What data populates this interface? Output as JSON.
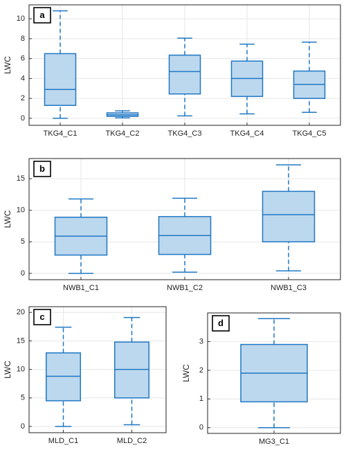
{
  "chart_data": [
    {
      "type": "box",
      "label": "a",
      "y_label": "LWC",
      "categories": [
        "TKG4_C1",
        "TKG4_C2",
        "TKG4_C3",
        "TKG4_C4",
        "TKG4_C5"
      ],
      "min": [
        0,
        0.05,
        0.25,
        0.45,
        0.6
      ],
      "q1": [
        1.3,
        0.2,
        2.45,
        2.2,
        2.0
      ],
      "median": [
        2.9,
        0.35,
        4.7,
        4.0,
        3.4
      ],
      "q3": [
        6.5,
        0.55,
        6.35,
        5.75,
        4.75
      ],
      "max": [
        10.8,
        0.75,
        8.05,
        7.45,
        7.65
      ],
      "color": "#1f77c4",
      "fill": "#bcd8ee",
      "ylim": [
        -0.7,
        11.4
      ],
      "yticks": [
        0,
        2,
        4,
        6,
        8,
        10
      ],
      "grid": true
    },
    {
      "type": "box",
      "label": "b",
      "y_label": "LWC",
      "categories": [
        "NWB1_C1",
        "NWB1_C2",
        "NWB1_C3"
      ],
      "min": [
        0,
        0.2,
        0.4
      ],
      "q1": [
        2.9,
        3.0,
        5.0
      ],
      "median": [
        5.9,
        6.0,
        9.3
      ],
      "q3": [
        8.9,
        9.0,
        13.0
      ],
      "max": [
        11.8,
        11.9,
        17.2
      ],
      "color": "#1f77c4",
      "fill": "#bcd8ee",
      "ylim": [
        -1.0,
        18.2
      ],
      "yticks": [
        0,
        5,
        10,
        15
      ],
      "grid": true
    },
    {
      "type": "box",
      "label": "c",
      "y_label": "LWC",
      "categories": [
        "MLD_C1",
        "MLD_C2"
      ],
      "min": [
        0,
        0.3
      ],
      "q1": [
        4.5,
        5.0
      ],
      "median": [
        8.8,
        10.0
      ],
      "q3": [
        12.9,
        14.8
      ],
      "max": [
        17.4,
        19.1
      ],
      "color": "#1f77c4",
      "fill": "#bcd8ee",
      "ylim": [
        -1.1,
        21.0
      ],
      "yticks": [
        0,
        5,
        10,
        15,
        20
      ],
      "grid": true
    },
    {
      "type": "box",
      "label": "d",
      "y_label": "LWC",
      "categories": [
        "MG3_C1"
      ],
      "min": [
        0
      ],
      "q1": [
        0.9
      ],
      "median": [
        1.9
      ],
      "q3": [
        2.9
      ],
      "max": [
        3.8
      ],
      "color": "#1f77c4",
      "fill": "#bcd8ee",
      "ylim": [
        -0.2,
        4.0
      ],
      "yticks": [
        0,
        1,
        2,
        3
      ],
      "grid": true
    }
  ]
}
